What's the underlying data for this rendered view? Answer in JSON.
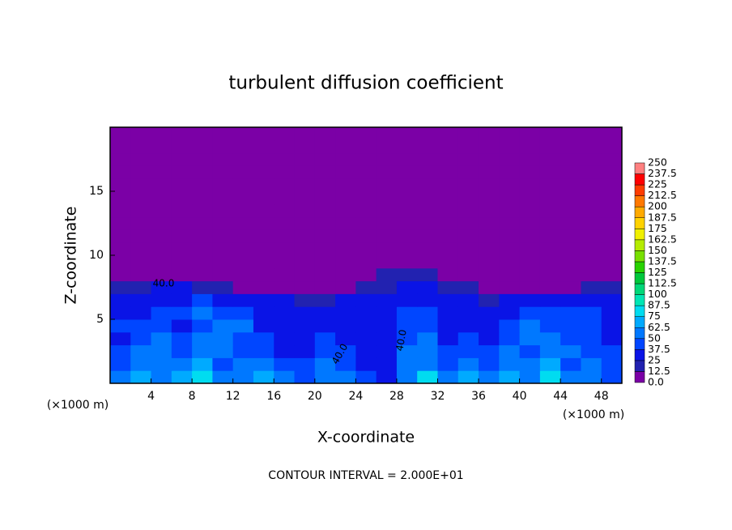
{
  "chart_data": {
    "type": "contour",
    "title": "turbulent diffusion coefficient",
    "x_label": "X-coordinate",
    "y_label": "Z-coordinate",
    "x_unit": "(×1000 m)",
    "x_unit_right": "(×1000 m)",
    "footer": "CONTOUR INTERVAL = 2.000E+01",
    "annotations": [
      "40.0",
      "40.0",
      "40.0"
    ],
    "xlim": [
      0,
      50
    ],
    "ylim": [
      0,
      20
    ],
    "xticks": [
      4,
      8,
      12,
      16,
      20,
      24,
      28,
      32,
      36,
      40,
      44,
      48
    ],
    "yticks": [
      5,
      10,
      15
    ],
    "x": [
      1,
      3,
      5,
      7,
      9,
      11,
      13,
      15,
      17,
      19,
      21,
      23,
      25,
      27,
      29,
      31,
      33,
      35,
      37,
      39,
      41,
      43,
      45,
      47,
      49
    ],
    "y": [
      0.5,
      1.5,
      2.5,
      3.5,
      4.5,
      5.5,
      6.5,
      7.5,
      8.5,
      9.5,
      10.5,
      11.5,
      12.5,
      13.5,
      14.5,
      15.5,
      16.5,
      17.5,
      18.5,
      19.5
    ],
    "z": [
      [
        55,
        70,
        60,
        65,
        80,
        50,
        60,
        70,
        55,
        45,
        60,
        50,
        40,
        35,
        60,
        75,
        55,
        65,
        50,
        70,
        60,
        75,
        55,
        60,
        45
      ],
      [
        45,
        60,
        50,
        55,
        65,
        45,
        50,
        55,
        40,
        40,
        50,
        45,
        35,
        30,
        55,
        60,
        45,
        55,
        45,
        60,
        50,
        65,
        45,
        50,
        40
      ],
      [
        40,
        50,
        55,
        45,
        60,
        50,
        40,
        45,
        35,
        35,
        45,
        40,
        30,
        30,
        50,
        55,
        40,
        45,
        40,
        50,
        45,
        55,
        50,
        45,
        40
      ],
      [
        35,
        45,
        50,
        40,
        50,
        55,
        45,
        40,
        30,
        30,
        40,
        35,
        30,
        30,
        45,
        50,
        35,
        40,
        35,
        45,
        55,
        50,
        45,
        40,
        35
      ],
      [
        40,
        40,
        45,
        35,
        45,
        50,
        50,
        35,
        30,
        25,
        35,
        35,
        30,
        35,
        45,
        45,
        35,
        35,
        30,
        40,
        50,
        45,
        40,
        45,
        35
      ],
      [
        35,
        35,
        40,
        40,
        50,
        45,
        45,
        35,
        30,
        25,
        30,
        30,
        30,
        35,
        40,
        40,
        35,
        30,
        30,
        35,
        45,
        40,
        40,
        40,
        35
      ],
      [
        30,
        30,
        35,
        35,
        40,
        35,
        30,
        25,
        25,
        20,
        20,
        25,
        25,
        30,
        35,
        35,
        30,
        25,
        20,
        25,
        30,
        30,
        30,
        35,
        30
      ],
      [
        20,
        20,
        25,
        25,
        20,
        15,
        0,
        0,
        0,
        0,
        0,
        0,
        15,
        20,
        25,
        25,
        20,
        15,
        0,
        0,
        0,
        0,
        0,
        15,
        20
      ],
      [
        0,
        0,
        0,
        0,
        0,
        0,
        0,
        0,
        0,
        0,
        0,
        0,
        0,
        15,
        20,
        15,
        0,
        0,
        0,
        0,
        0,
        0,
        0,
        0,
        0
      ],
      [
        0,
        0,
        0,
        0,
        0,
        0,
        0,
        0,
        0,
        0,
        0,
        0,
        0,
        0,
        0,
        0,
        0,
        0,
        0,
        0,
        0,
        0,
        0,
        0,
        0
      ],
      [
        0,
        0,
        0,
        0,
        0,
        0,
        0,
        0,
        0,
        0,
        0,
        0,
        0,
        0,
        0,
        0,
        0,
        0,
        0,
        0,
        0,
        0,
        0,
        0,
        0
      ],
      [
        0,
        0,
        0,
        0,
        0,
        0,
        0,
        0,
        0,
        0,
        0,
        0,
        0,
        0,
        0,
        0,
        0,
        0,
        0,
        0,
        0,
        0,
        0,
        0,
        0
      ],
      [
        0,
        0,
        0,
        0,
        0,
        0,
        0,
        0,
        0,
        0,
        0,
        0,
        0,
        0,
        0,
        0,
        0,
        0,
        0,
        0,
        0,
        0,
        0,
        0,
        0
      ],
      [
        0,
        0,
        0,
        0,
        0,
        0,
        0,
        0,
        0,
        0,
        0,
        0,
        0,
        0,
        0,
        0,
        0,
        0,
        0,
        0,
        0,
        0,
        0,
        0,
        0
      ],
      [
        0,
        0,
        0,
        0,
        0,
        0,
        0,
        0,
        0,
        0,
        0,
        0,
        0,
        0,
        0,
        0,
        0,
        0,
        0,
        0,
        0,
        0,
        0,
        0,
        0
      ],
      [
        0,
        0,
        0,
        0,
        0,
        0,
        0,
        0,
        0,
        0,
        0,
        0,
        0,
        0,
        0,
        0,
        0,
        0,
        0,
        0,
        0,
        0,
        0,
        0,
        0
      ],
      [
        0,
        0,
        0,
        0,
        0,
        0,
        0,
        0,
        0,
        0,
        0,
        0,
        0,
        0,
        0,
        0,
        0,
        0,
        0,
        0,
        0,
        0,
        0,
        0,
        0
      ],
      [
        0,
        0,
        0,
        0,
        0,
        0,
        0,
        0,
        0,
        0,
        0,
        0,
        0,
        0,
        0,
        0,
        0,
        0,
        0,
        0,
        0,
        0,
        0,
        0,
        0
      ],
      [
        0,
        0,
        0,
        0,
        0,
        0,
        0,
        0,
        0,
        0,
        0,
        0,
        0,
        0,
        0,
        0,
        0,
        0,
        0,
        0,
        0,
        0,
        0,
        0,
        0
      ],
      [
        0,
        0,
        0,
        0,
        0,
        0,
        0,
        0,
        0,
        0,
        0,
        0,
        0,
        0,
        0,
        0,
        0,
        0,
        0,
        0,
        0,
        0,
        0,
        0,
        0
      ]
    ],
    "levels": [
      {
        "value": 0,
        "label": "0.0"
      },
      12.5,
      25,
      37.5,
      50,
      62.5,
      75,
      87.5,
      100,
      112.5,
      125,
      137.5,
      150,
      162.5,
      175,
      187.5,
      200,
      212.5,
      225,
      237.5,
      250
    ],
    "colors": [
      "#7b00a6",
      "#2222b0",
      "#0a14e6",
      "#0046ff",
      "#0078ff",
      "#00aaff",
      "#00dcf0",
      "#00e6b4",
      "#00d878",
      "#00c83c",
      "#28d200",
      "#78e000",
      "#b4ec00",
      "#f0f000",
      "#ffd200",
      "#ffaa00",
      "#ff7800",
      "#ff3c00",
      "#ff0000",
      "#ff8080"
    ]
  }
}
